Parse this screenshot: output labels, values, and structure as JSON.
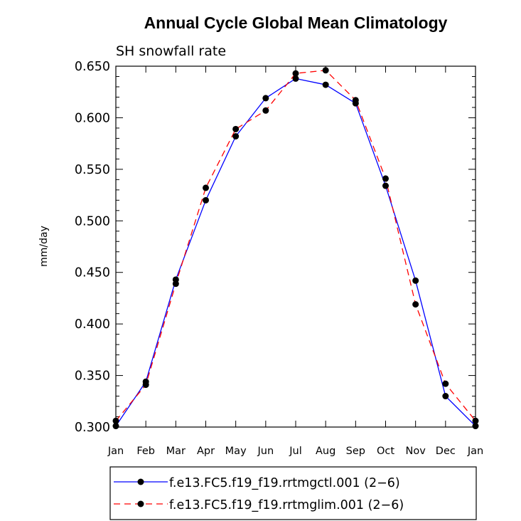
{
  "chart_data": {
    "type": "line",
    "title": "Annual Cycle Global Mean Climatology",
    "subtitle": "SH snowfall rate",
    "xlabel": "",
    "ylabel": "mm/day",
    "categories": [
      "Jan",
      "Feb",
      "Mar",
      "Apr",
      "May",
      "Jun",
      "Jul",
      "Aug",
      "Sep",
      "Oct",
      "Nov",
      "Dec",
      "Jan"
    ],
    "ylim": [
      0.3,
      0.65
    ],
    "yticks": [
      "0.300",
      "0.350",
      "0.400",
      "0.450",
      "0.500",
      "0.550",
      "0.600",
      "0.650"
    ],
    "series": [
      {
        "name": "f.e13.FC5.f19_f19.rrtmgctl.001 (2−6)",
        "color": "#0000ff",
        "dash": "solid",
        "values": [
          0.301,
          0.344,
          0.443,
          0.52,
          0.582,
          0.619,
          0.638,
          0.632,
          0.614,
          0.534,
          0.442,
          0.33,
          0.301
        ]
      },
      {
        "name": "f.e13.FC5.f19_f19.rrtmglim.001 (2−6)",
        "color": "#ff0000",
        "dash": "dashed",
        "values": [
          0.306,
          0.341,
          0.439,
          0.532,
          0.589,
          0.607,
          0.643,
          0.646,
          0.617,
          0.541,
          0.419,
          0.342,
          0.306
        ]
      }
    ],
    "marker_color": "#000000",
    "legend_position": "bottom"
  }
}
